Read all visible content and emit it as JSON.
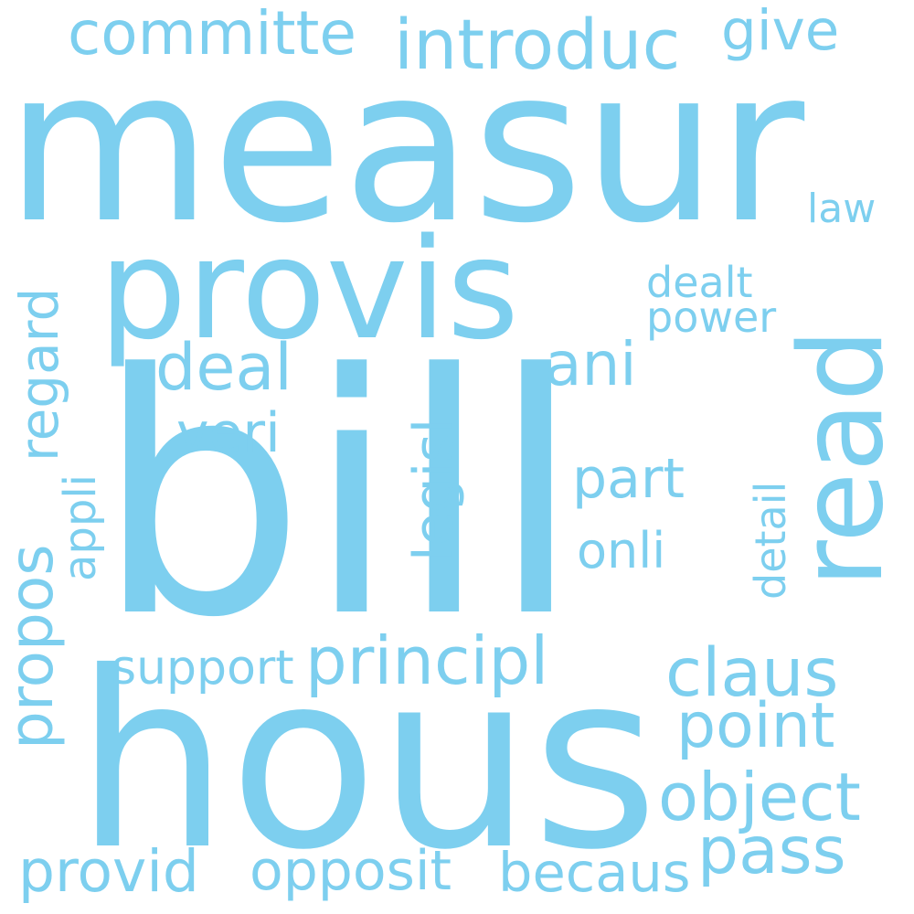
{
  "cloud": {
    "color": "#7dcfef",
    "background": "#ffffff",
    "words": {
      "bill": "bill",
      "measur": "measur",
      "hous": "hous",
      "provis": "provis",
      "read": "read",
      "committe": "committe",
      "introduc": "introduc",
      "give": "give",
      "law": "law",
      "regard": "regard",
      "dealt": "dealt",
      "power": "power",
      "deal": "deal",
      "ani": "ani",
      "veri": "veri",
      "legisl": "legisl",
      "part": "part",
      "appli": "appli",
      "propos": "propos",
      "onli": "onli",
      "detail": "detail",
      "support": "support",
      "principl": "principl",
      "claus": "claus",
      "point": "point",
      "object": "object",
      "pass": "pass",
      "provid": "provid",
      "opposit": "opposit",
      "becaus": "becaus"
    }
  }
}
